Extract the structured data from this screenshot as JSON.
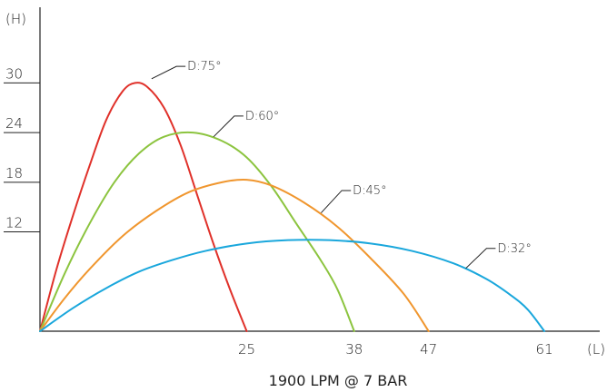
{
  "chart_data": {
    "type": "line",
    "title": "",
    "caption": "1900 LPM @ 7 BAR",
    "ylabel": "(H)",
    "xlabel": "(L)",
    "xlim": [
      0,
      69
    ],
    "ylim": [
      0,
      38
    ],
    "x_ticks": [
      25,
      38,
      47,
      61
    ],
    "y_ticks": [
      12,
      18,
      24,
      30
    ],
    "grid": false,
    "series": [
      {
        "name": "D:75°",
        "color": "#e0312a",
        "points": [
          [
            0,
            0
          ],
          [
            2,
            7.5
          ],
          [
            4,
            14
          ],
          [
            6,
            20
          ],
          [
            8,
            25.5
          ],
          [
            10,
            29
          ],
          [
            11.5,
            30
          ],
          [
            13,
            29.5
          ],
          [
            15,
            27
          ],
          [
            17,
            22.5
          ],
          [
            19,
            16.5
          ],
          [
            21,
            10.5
          ],
          [
            23,
            5
          ],
          [
            25,
            0
          ]
        ]
      },
      {
        "name": "D:60°",
        "color": "#8cc43f",
        "points": [
          [
            0,
            0
          ],
          [
            3,
            7
          ],
          [
            6,
            13
          ],
          [
            9,
            18
          ],
          [
            12,
            21.5
          ],
          [
            15,
            23.5
          ],
          [
            18.5,
            24
          ],
          [
            22,
            23
          ],
          [
            25,
            21
          ],
          [
            28,
            17.5
          ],
          [
            31,
            13
          ],
          [
            34,
            8.5
          ],
          [
            36,
            5
          ],
          [
            38,
            0
          ]
        ]
      },
      {
        "name": "D:45°",
        "color": "#f0962e",
        "points": [
          [
            0,
            0
          ],
          [
            3,
            4
          ],
          [
            6,
            7.5
          ],
          [
            10,
            11.5
          ],
          [
            14,
            14.5
          ],
          [
            18,
            16.8
          ],
          [
            22,
            18
          ],
          [
            25,
            18.3
          ],
          [
            28,
            17.6
          ],
          [
            32,
            15.5
          ],
          [
            36,
            12.6
          ],
          [
            40,
            8.8
          ],
          [
            44,
            4.5
          ],
          [
            47,
            0
          ]
        ]
      },
      {
        "name": "D:32°",
        "color": "#1aa7dc",
        "points": [
          [
            0,
            0
          ],
          [
            4,
            2.8
          ],
          [
            8,
            5.2
          ],
          [
            12,
            7.2
          ],
          [
            16,
            8.6
          ],
          [
            20,
            9.7
          ],
          [
            25,
            10.6
          ],
          [
            30,
            11
          ],
          [
            35,
            11
          ],
          [
            40,
            10.6
          ],
          [
            45,
            9.7
          ],
          [
            50,
            8.2
          ],
          [
            54,
            6.3
          ],
          [
            57,
            4.3
          ],
          [
            59,
            2.6
          ],
          [
            61,
            0
          ]
        ]
      }
    ],
    "annotations": [
      {
        "series": 0,
        "text": "D:75°",
        "at": [
          13.5,
          30.5
        ],
        "label": [
          16.5,
          32
        ]
      },
      {
        "series": 1,
        "text": "D:60°",
        "at": [
          21.0,
          23.5
        ],
        "label": [
          23.5,
          26
        ]
      },
      {
        "series": 2,
        "text": "D:45°",
        "at": [
          34.0,
          14.3
        ],
        "label": [
          36.5,
          17
        ]
      },
      {
        "series": 3,
        "text": "D:32°",
        "at": [
          51.5,
          7.6
        ],
        "label": [
          54.0,
          10
        ]
      }
    ]
  }
}
